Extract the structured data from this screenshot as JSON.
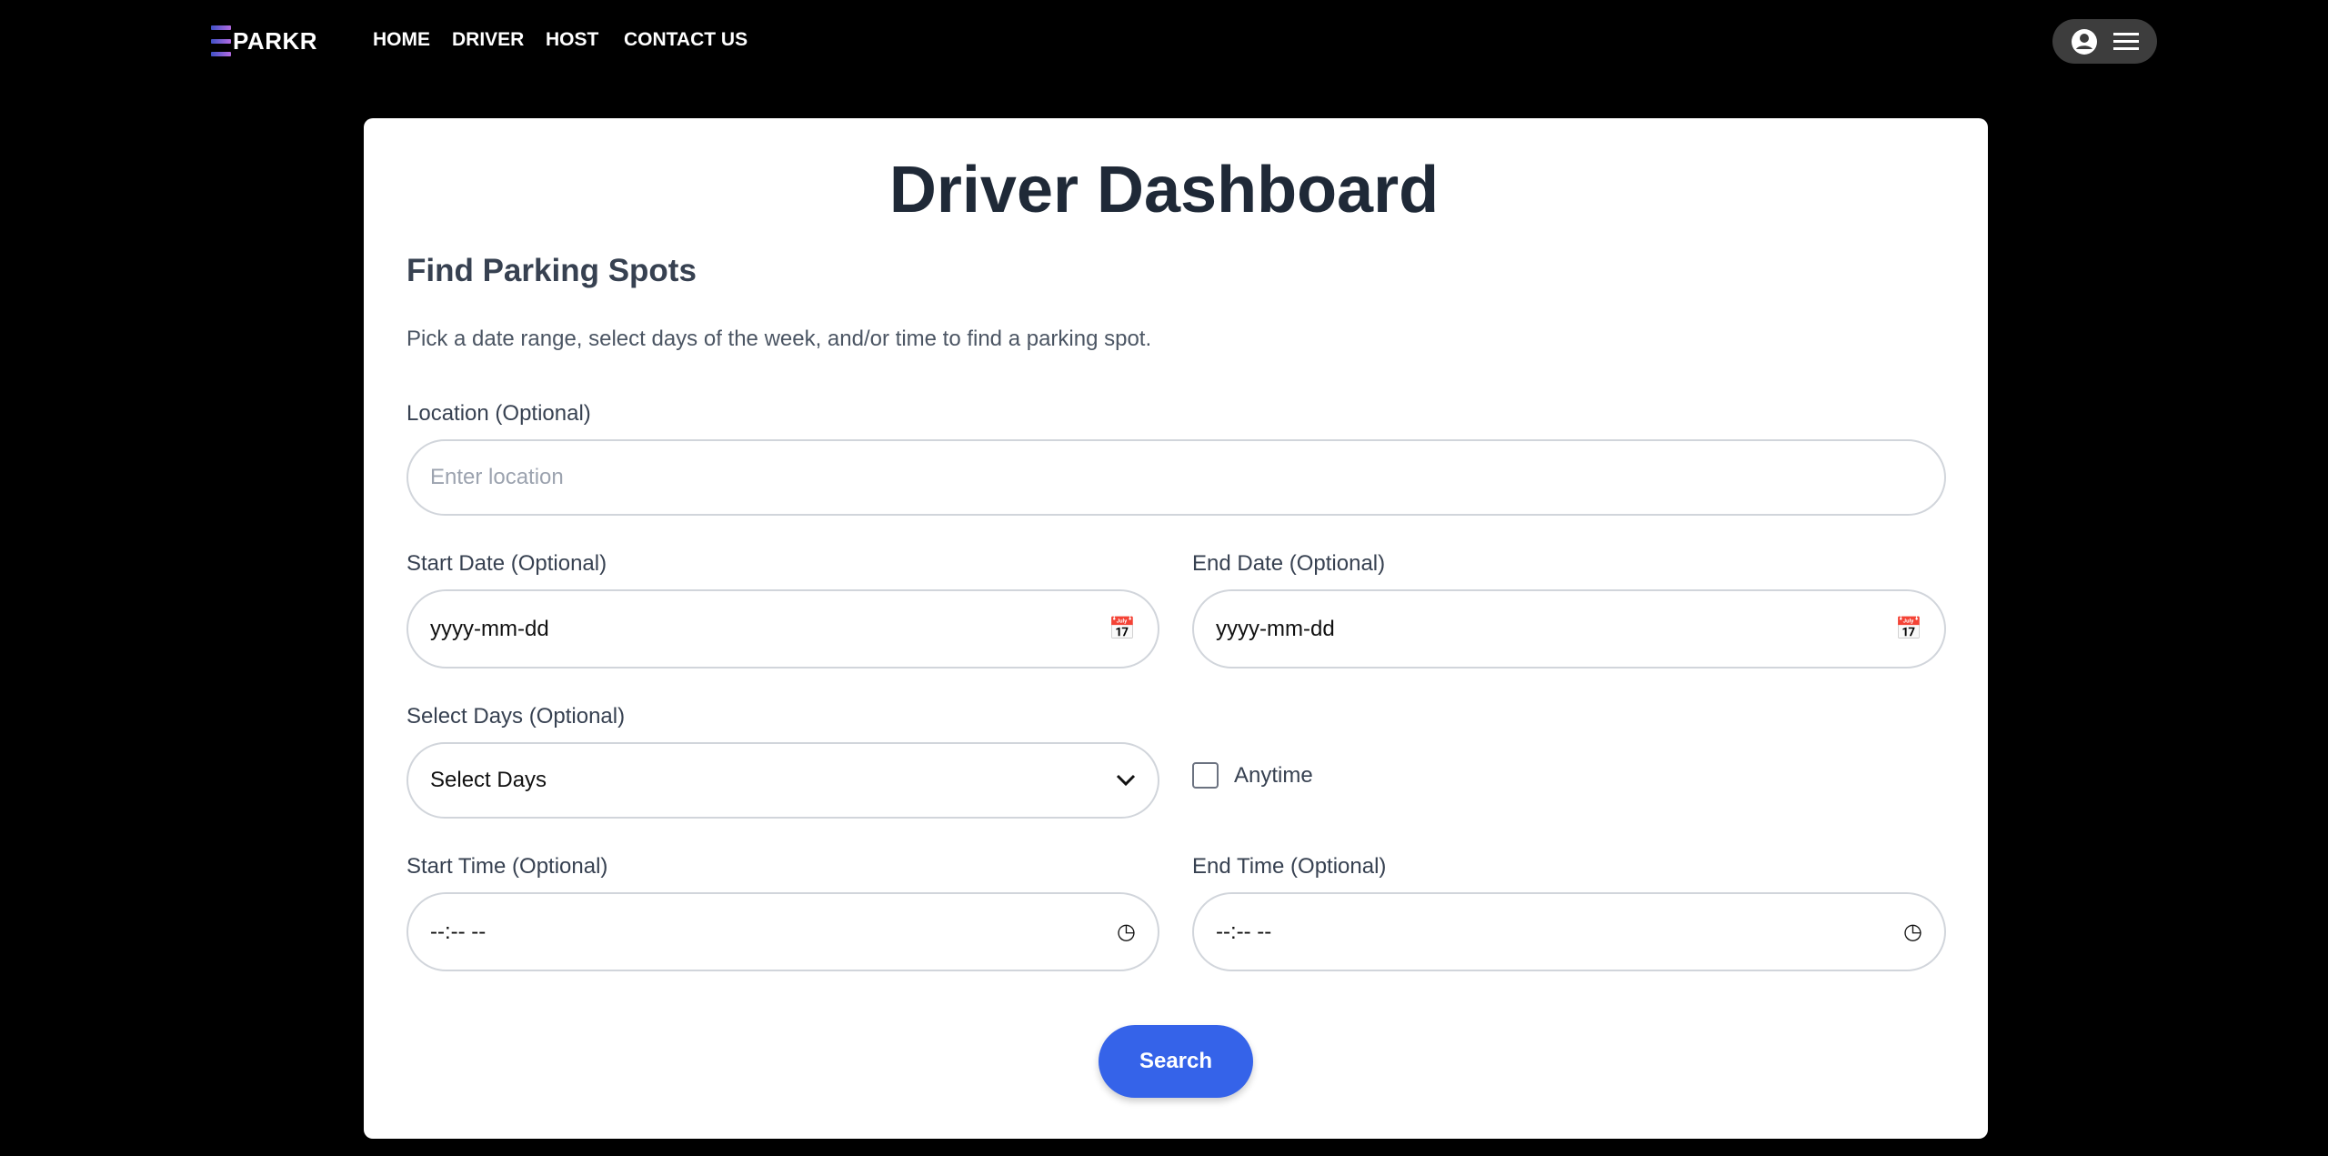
{
  "header": {
    "logo": "PARKR",
    "nav": [
      "HOME",
      "DRIVER",
      "HOST",
      "CONTACT US"
    ],
    "user_icon": "account-circle-icon",
    "menu_icon": "hamburger-menu-icon"
  },
  "main": {
    "title": "Driver Dashboard",
    "subtitle": "Find Parking Spots",
    "description": "Pick a date range, select days of the week, and/or time to find a parking spot.",
    "location": {
      "label": "Location (Optional)",
      "placeholder": "Enter location"
    },
    "start_date": {
      "label": "Start Date (Optional)",
      "value": "yyyy-mm-dd"
    },
    "end_date": {
      "label": "End Date (Optional)",
      "value": "yyyy-mm-dd"
    },
    "days": {
      "label": "Select Days (Optional)",
      "value": "Select Days"
    },
    "anytime": {
      "label": "Anytime",
      "checked": false
    },
    "start_time": {
      "label": "Start Time (Optional)",
      "value": "--:-- --"
    },
    "end_time": {
      "label": "End Time (Optional)",
      "value": "--:-- --"
    },
    "search_label": "Search"
  },
  "colors": {
    "accent": "#3563e9",
    "background": "#000000"
  }
}
